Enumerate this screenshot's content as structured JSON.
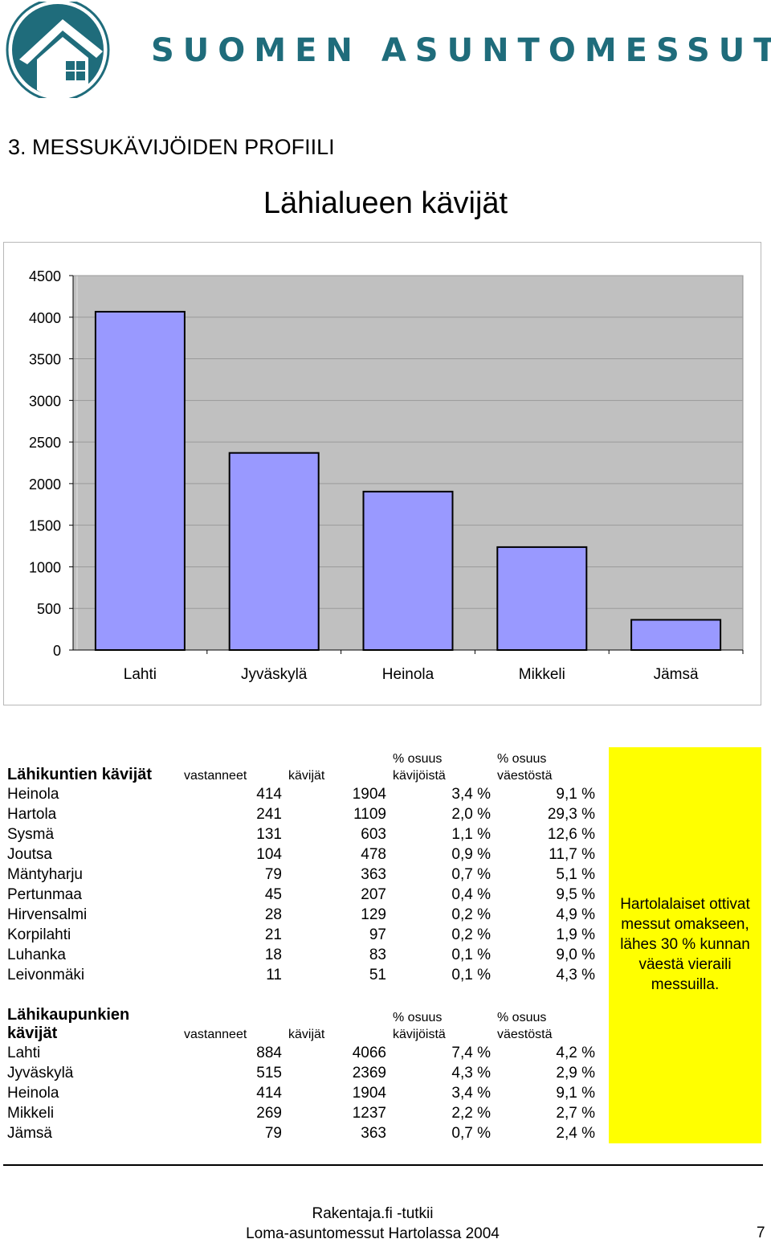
{
  "header": {
    "brand": "SUOMEN ASUNTOMESSUT"
  },
  "section_title": "3. MESSUKÄVIJÖIDEN PROFIILI",
  "chart_data": {
    "type": "bar",
    "title": "Lähialueen kävijät",
    "categories": [
      "Lahti",
      "Jyväskylä",
      "Heinola",
      "Mikkeli",
      "Jämsä"
    ],
    "values": [
      4066,
      2369,
      1904,
      1237,
      363
    ],
    "ylim": [
      0,
      4500
    ],
    "yticks": [
      0,
      500,
      1000,
      1500,
      2000,
      2500,
      3000,
      3500,
      4000,
      4500
    ],
    "grid": true,
    "bar_color": "#9999ff",
    "plot_bg": "#c0c0c0"
  },
  "table1": {
    "title": "Lähikuntien kävijät",
    "col_vastanneet": "vastanneet",
    "col_kavijat": "kävijät",
    "col_osuus1_a": "% osuus",
    "col_osuus1_b": "kävijöistä",
    "col_osuus2_a": "% osuus",
    "col_osuus2_b": "väestöstä",
    "rows": [
      [
        "Heinola",
        "414",
        "1904",
        "3,4 %",
        "9,1 %"
      ],
      [
        "Hartola",
        "241",
        "1109",
        "2,0 %",
        "29,3 %"
      ],
      [
        "Sysmä",
        "131",
        "603",
        "1,1 %",
        "12,6 %"
      ],
      [
        "Joutsa",
        "104",
        "478",
        "0,9 %",
        "11,7 %"
      ],
      [
        "Mäntyharju",
        "79",
        "363",
        "0,7 %",
        "5,1 %"
      ],
      [
        "Pertunmaa",
        "45",
        "207",
        "0,4 %",
        "9,5 %"
      ],
      [
        "Hirvensalmi",
        "28",
        "129",
        "0,2 %",
        "4,9 %"
      ],
      [
        "Korpilahti",
        "21",
        "97",
        "0,2 %",
        "1,9 %"
      ],
      [
        "Luhanka",
        "18",
        "83",
        "0,1 %",
        "9,0 %"
      ],
      [
        "Leivonmäki",
        "11",
        "51",
        "0,1 %",
        "4,3 %"
      ]
    ]
  },
  "table2": {
    "title_a": "Lähikaupunkien",
    "title_b": "kävijät",
    "col_vastanneet": "vastanneet",
    "col_kavijat": "kävijät",
    "col_osuus1_a": "% osuus",
    "col_osuus1_b": "kävijöistä",
    "col_osuus2_a": "% osuus",
    "col_osuus2_b": "väestöstä",
    "rows": [
      [
        "Lahti",
        "884",
        "4066",
        "7,4 %",
        "4,2 %"
      ],
      [
        "Jyväskylä",
        "515",
        "2369",
        "4,3 %",
        "2,9 %"
      ],
      [
        "Heinola",
        "414",
        "1904",
        "3,4 %",
        "9,1 %"
      ],
      [
        "Mikkeli",
        "269",
        "1237",
        "2,2 %",
        "2,7 %"
      ],
      [
        "Jämsä",
        "79",
        "363",
        "0,7 %",
        "2,4 %"
      ]
    ]
  },
  "note": {
    "text": "Hartolalaiset ottivat messut omakseen, lähes 30 % kunnan väestä vieraili messuilla.",
    "bg_color": "#ffff00"
  },
  "footer": {
    "line1": "Rakentaja.fi -tutkii",
    "line2": "Loma-asuntomessut Hartolassa 2004",
    "page": "7"
  }
}
